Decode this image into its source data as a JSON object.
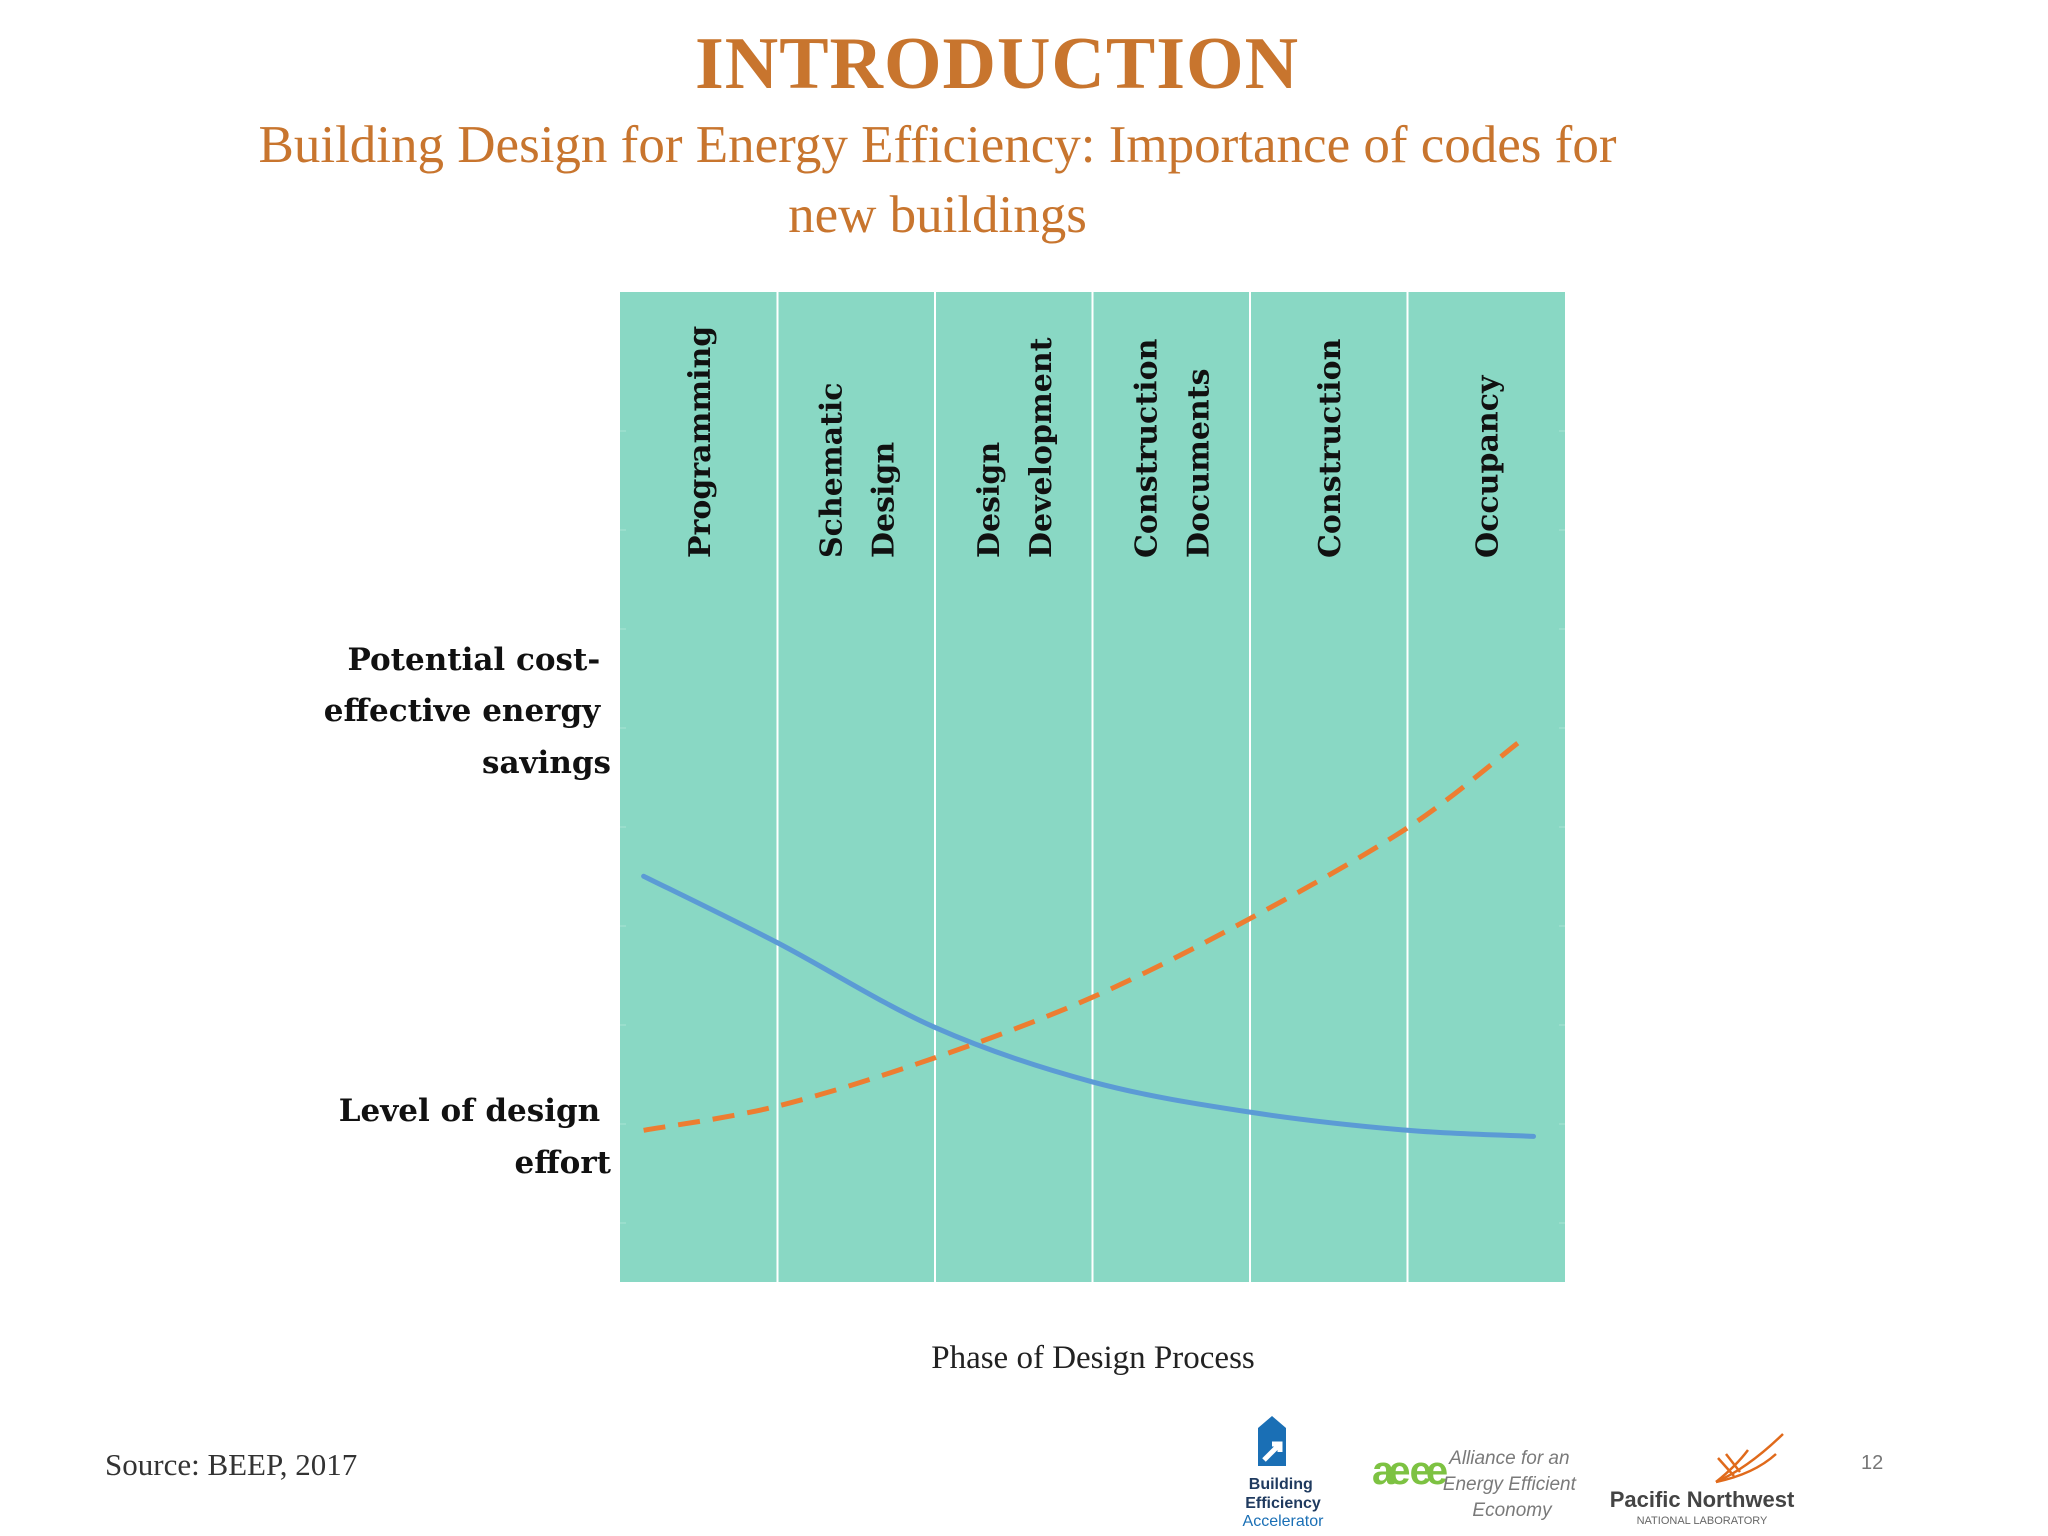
{
  "slide": {
    "title": "INTRODUCTION",
    "subtitle": "Building Design for Energy Efficiency: Importance of codes for new buildings",
    "source": "Source: BEEP, 2017",
    "page_number": "12"
  },
  "logos": {
    "bea": {
      "line1": "Building",
      "line2": "Efficiency",
      "line3": "Accelerator"
    },
    "ase": {
      "mark": "ae ee",
      "line1": "Alliance for an",
      "line2": "Energy Efficient",
      "line3": "Economy"
    },
    "pnnl": {
      "line1": "Pacific Northwest",
      "line2": "NATIONAL LABORATORY"
    }
  },
  "colors": {
    "title": "#c8752e",
    "plot_background": "#89d8c4",
    "savings_line": "#5b9bd5",
    "effort_line": "#ed7d31",
    "bea_logo": "#1a6fb5",
    "ase_logo": "#7dc242"
  },
  "chart_data": {
    "type": "line",
    "categories": [
      "Programming",
      "Schematic Design",
      "Design Development",
      "Construction Documents",
      "Construction",
      "Occupancy"
    ],
    "xlabel": "Phase of Design Process",
    "y_annotations": {
      "upper": "Potential cost-effective energy savings",
      "lower": "Level of design effort"
    },
    "y_tick_labels": false,
    "ylim": [
      0,
      1
    ],
    "grid": "vertical lines between phases",
    "series": [
      {
        "role": "savings",
        "style": "solid",
        "x": [
          0.15,
          1.0,
          2.0,
          3.0,
          4.0,
          5.0,
          5.8
        ],
        "values": [
          0.56,
          0.45,
          0.31,
          0.22,
          0.17,
          0.14,
          0.13
        ]
      },
      {
        "role": "effort",
        "style": "dashed",
        "x": [
          0.15,
          1.0,
          2.0,
          3.0,
          4.0,
          5.0,
          5.7
        ],
        "values": [
          0.14,
          0.18,
          0.26,
          0.36,
          0.49,
          0.64,
          0.78
        ]
      }
    ]
  }
}
